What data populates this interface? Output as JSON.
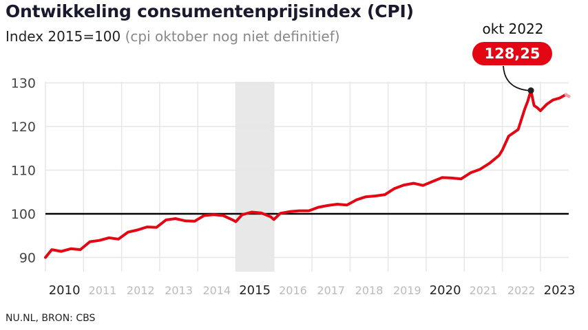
{
  "title": "Ontwikkeling consumentenprijsindex (CPI)",
  "subtitle": "Index 2015=100",
  "subtitle_note": "(cpi oktober nog niet definitief)",
  "source": "NU.NL, BRON: CBS",
  "colors": {
    "line": "#e30613",
    "line_provisional": "#f2a0a6",
    "baseline": "#000000",
    "grid": "#e6e6e6",
    "highlight_band": "#e8e8e8",
    "year_label_bold": "#222222",
    "year_label_light": "#bbbbbb"
  },
  "chart_data": {
    "type": "line",
    "title": "Ontwikkeling consumentenprijsindex (CPI)",
    "ylabel": "Index 2015=100",
    "ylim": [
      88,
      131
    ],
    "yticks": [
      90,
      100,
      110,
      120,
      130
    ],
    "reference_line": 100,
    "highlighted_year": "2015",
    "x_labels": [
      "2010",
      "2011",
      "2012",
      "2013",
      "2014",
      "2015",
      "2016",
      "2017",
      "2018",
      "2019",
      "2020",
      "2021",
      "2022",
      "2023"
    ],
    "x_labels_emphasized": [
      "2010",
      "2015",
      "2020",
      "2023"
    ],
    "grid": true,
    "series": [
      {
        "x": [
          "2010-01",
          "2010-03",
          "2010-06",
          "2010-09",
          "2010-12",
          "2011-03",
          "2011-06",
          "2011-09",
          "2011-12",
          "2012-03",
          "2012-06",
          "2012-09",
          "2012-12",
          "2013-03",
          "2013-06",
          "2013-09",
          "2013-12",
          "2014-03",
          "2014-06",
          "2014-09",
          "2014-12",
          "2015-01",
          "2015-03",
          "2015-06",
          "2015-09",
          "2015-12",
          "2016-01",
          "2016-03",
          "2016-06",
          "2016-09",
          "2016-12",
          "2017-03",
          "2017-06",
          "2017-09",
          "2017-12",
          "2018-03",
          "2018-06",
          "2018-09",
          "2018-12",
          "2019-03",
          "2019-06",
          "2019-09",
          "2019-12",
          "2020-03",
          "2020-06",
          "2020-09",
          "2020-12",
          "2021-03",
          "2021-06",
          "2021-09",
          "2021-12",
          "2022-01",
          "2022-03",
          "2022-06",
          "2022-08",
          "2022-09",
          "2022-10",
          "2022-11",
          "2022-12",
          "2023-01",
          "2023-03",
          "2023-05",
          "2023-07",
          "2023-09",
          "2023-10"
        ],
        "values": [
          90.0,
          91.8,
          91.4,
          92.0,
          91.8,
          93.6,
          93.9,
          94.5,
          94.2,
          95.8,
          96.3,
          97.0,
          96.9,
          98.6,
          98.9,
          98.4,
          98.3,
          99.6,
          99.8,
          99.6,
          98.6,
          98.2,
          99.8,
          100.4,
          100.2,
          99.3,
          98.7,
          100.1,
          100.5,
          100.7,
          100.7,
          101.5,
          101.9,
          102.2,
          102.0,
          103.2,
          103.9,
          104.1,
          104.4,
          105.8,
          106.6,
          107.0,
          106.5,
          107.4,
          108.3,
          108.2,
          108.0,
          109.4,
          110.2,
          111.6,
          113.4,
          114.6,
          117.8,
          119.3,
          123.9,
          125.8,
          128.25,
          124.8,
          124.3,
          123.6,
          125.1,
          126.1,
          126.5,
          127.3,
          126.9
        ]
      }
    ],
    "annotation": {
      "x": "2022-10",
      "value": 128.25,
      "label": "okt 2022",
      "value_label": "128,25"
    }
  }
}
